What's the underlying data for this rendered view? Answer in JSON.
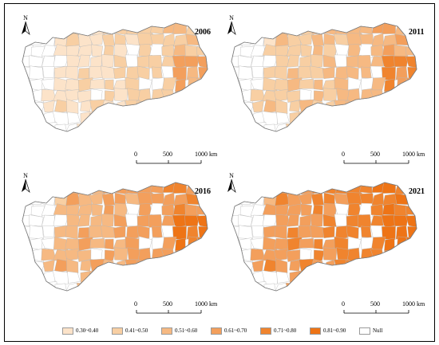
{
  "north_label": "N",
  "scale": {
    "ticks": [
      "0",
      "500",
      "1000 km"
    ]
  },
  "colors": {
    "null": "#ffffff",
    "border": "#b8b8b8",
    "classes": [
      "#fce3c9",
      "#f8cfa3",
      "#f6b982",
      "#f39f5c",
      "#f0842e",
      "#ee7416"
    ]
  },
  "legend": [
    {
      "label": "0.30~0.40",
      "color": "#fce3c9"
    },
    {
      "label": "0.41~0.50",
      "color": "#f8cfa3"
    },
    {
      "label": "0.51~0.60",
      "color": "#f6b982"
    },
    {
      "label": "0.61~0.70",
      "color": "#f39f5c"
    },
    {
      "label": "0.71~0.80",
      "color": "#f0842e"
    },
    {
      "label": "0.81~0.90",
      "color": "#ee7416"
    },
    {
      "label": "Null",
      "color": "#ffffff"
    }
  ],
  "panels": [
    {
      "year": "2006",
      "level": 1
    },
    {
      "year": "2011",
      "level": 2
    },
    {
      "year": "2016",
      "level": 3
    },
    {
      "year": "2021",
      "level": 4
    }
  ]
}
